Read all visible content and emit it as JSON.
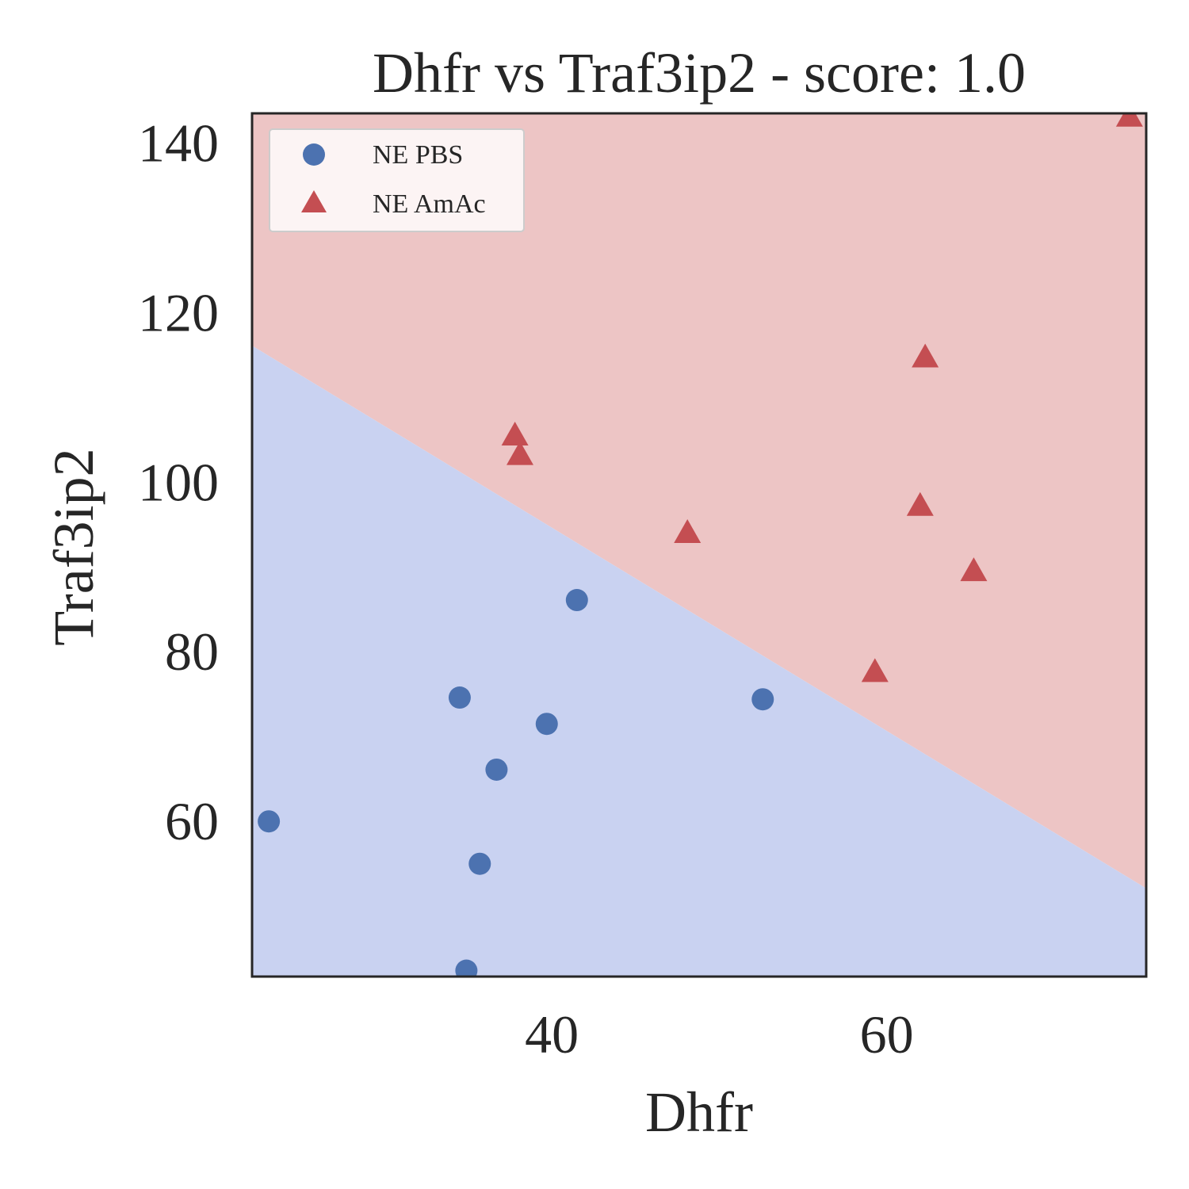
{
  "chart_data": {
    "type": "scatter",
    "title": "Dhfr vs Traf3ip2 - score: 1.0",
    "xlabel": "Dhfr",
    "ylabel": "Traf3ip2",
    "xlim": [
      22.1,
      75.5
    ],
    "ylim": [
      41.6,
      143.4
    ],
    "xticks": [
      40,
      60
    ],
    "yticks": [
      60,
      80,
      100,
      120,
      140
    ],
    "grid": false,
    "legend_position": "top-left",
    "decision_boundary": {
      "points": [
        [
          22.1,
          116.0
        ],
        [
          75.5,
          52.0
        ]
      ],
      "region_above": "NE AmAc",
      "region_below": "NE PBS"
    },
    "series": [
      {
        "name": "NE PBS",
        "marker": "circle",
        "color": "#4c72b0",
        "region_color": "#c9d2f1",
        "points": [
          [
            23.1,
            59.9
          ],
          [
            34.5,
            74.5
          ],
          [
            34.9,
            42.3
          ],
          [
            35.7,
            54.9
          ],
          [
            36.7,
            66.0
          ],
          [
            39.7,
            71.4
          ],
          [
            41.5,
            86.0
          ],
          [
            52.6,
            74.3
          ]
        ]
      },
      {
        "name": "NE AmAc",
        "marker": "triangle",
        "color": "#c44e52",
        "region_color": "#edc5c5",
        "points": [
          [
            37.8,
            105.3
          ],
          [
            38.1,
            103.0
          ],
          [
            48.1,
            93.8
          ],
          [
            59.3,
            77.4
          ],
          [
            62.0,
            97.0
          ],
          [
            62.3,
            114.5
          ],
          [
            65.2,
            89.3
          ],
          [
            74.5,
            142.9
          ]
        ]
      }
    ]
  }
}
